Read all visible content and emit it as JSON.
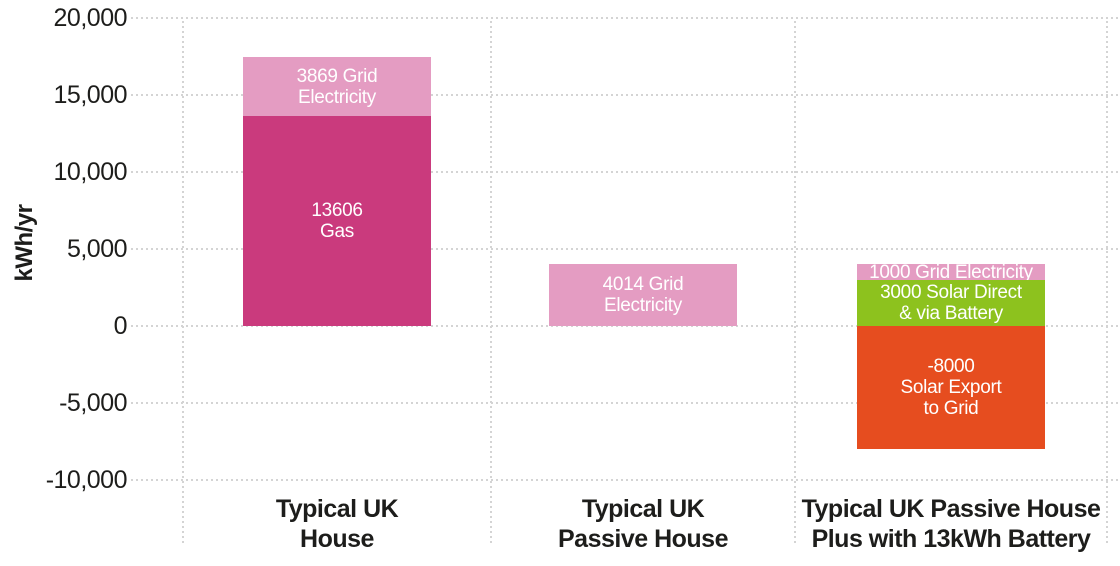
{
  "chart_data": {
    "type": "bar",
    "stacked": true,
    "title": "",
    "xlabel": "",
    "ylabel": "kWh/yr",
    "ylim": [
      -10000,
      20000
    ],
    "grid": "dotted",
    "legend": "none (labels inside segments)",
    "yticks": [
      {
        "value": 20000,
        "label": "20,000"
      },
      {
        "value": 15000,
        "label": "15,000"
      },
      {
        "value": 10000,
        "label": "10,000"
      },
      {
        "value": 5000,
        "label": "5,000"
      },
      {
        "value": 0,
        "label": "0"
      },
      {
        "value": -5000,
        "label": "-5,000"
      },
      {
        "value": -10000,
        "label": "-10,000"
      }
    ],
    "categories": [
      "Typical UK\nHouse",
      "Typical UK\nPassive House",
      "Typical UK Passive House\nPlus with 13kWh Battery"
    ],
    "bars": [
      {
        "segments": [
          {
            "name": "grid-electricity",
            "value": 3869,
            "label": "3869 Grid\nElectricity",
            "color": "#e49cc2"
          },
          {
            "name": "gas",
            "value": 13606,
            "label": "13606\nGas",
            "color": "#ca3a7d"
          }
        ]
      },
      {
        "segments": [
          {
            "name": "grid-electricity",
            "value": 4014,
            "label": "4014 Grid\nElectricity",
            "color": "#e49cc2"
          }
        ]
      },
      {
        "segments": [
          {
            "name": "grid-electricity",
            "value": 1000,
            "label": "1000 Grid Electricity",
            "color": "#e49cc2"
          },
          {
            "name": "solar-direct-via-battery",
            "value": 3000,
            "label": "3000 Solar Direct\n& via Battery",
            "color": "#8dc21e"
          },
          {
            "name": "solar-export-to-grid",
            "value": -8000,
            "label": "-8000\nSolar Export\nto Grid",
            "color": "#e64d1f"
          }
        ]
      }
    ],
    "colors": {
      "grid_electricity": "#e49cc2",
      "gas": "#ca3a7d",
      "solar_direct_via_battery": "#8dc21e",
      "solar_export_to_grid": "#e64d1f",
      "gridline": "#d4d4d4",
      "text": "#1d1d1b",
      "segment_text": "#ffffff",
      "background": "#ffffff"
    }
  }
}
